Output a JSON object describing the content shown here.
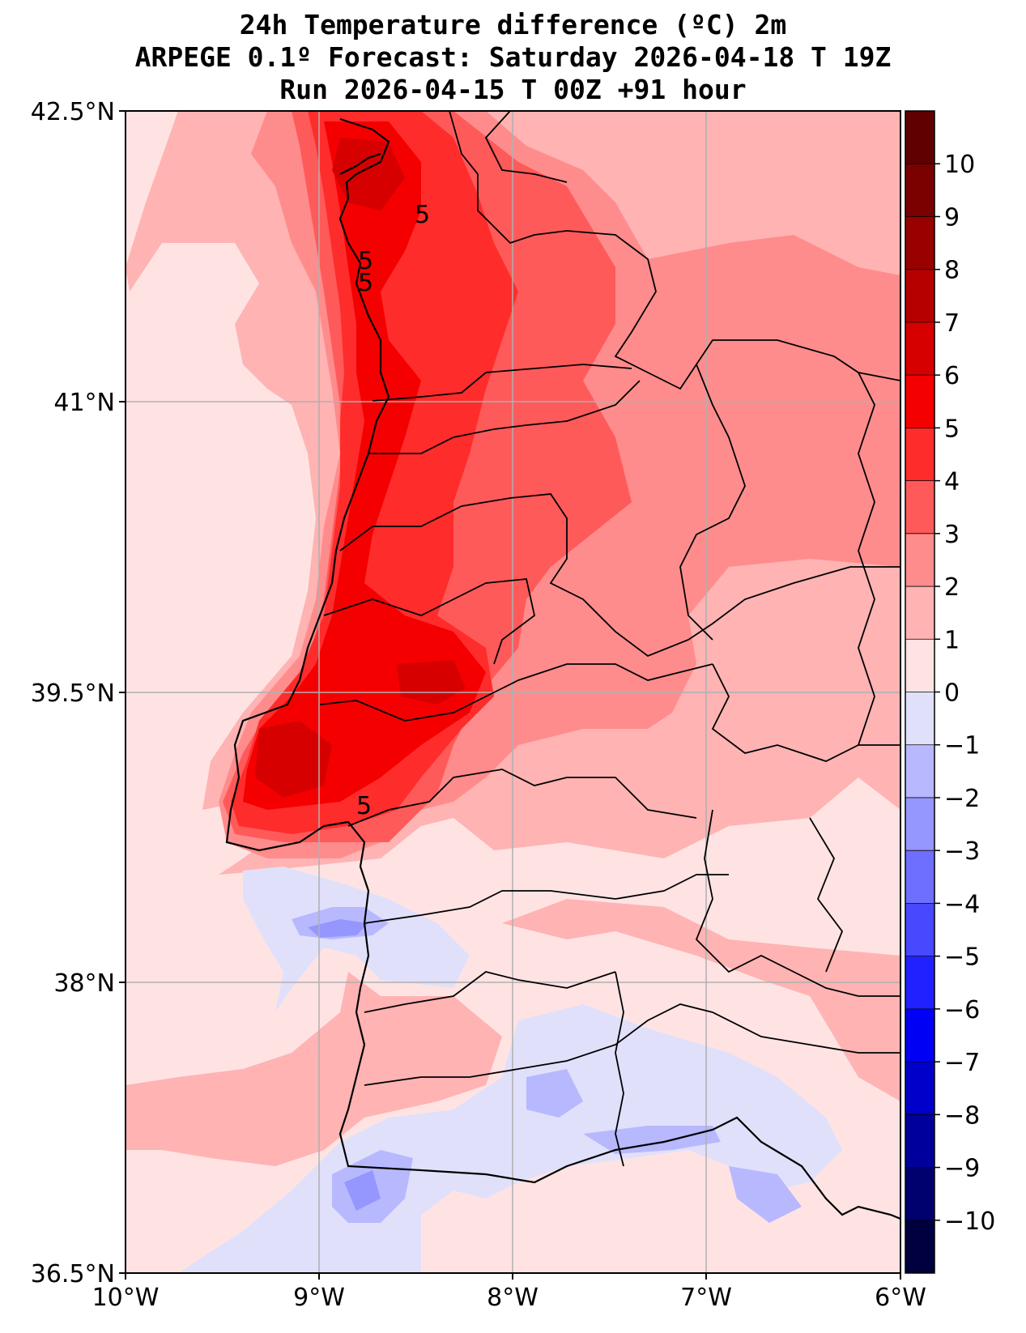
{
  "title": {
    "line1": "24h Temperature difference (ºC) 2m",
    "line2": "ARPEGE 0.1º Forecast: Saturday 2026-04-18 T 19Z",
    "line3": "Run 2026-04-15 T 00Z +91 hour"
  },
  "axes": {
    "lon_ticks": [
      {
        "value": -10,
        "label": "10°W"
      },
      {
        "value": -9,
        "label": "9°W"
      },
      {
        "value": -8,
        "label": "8°W"
      },
      {
        "value": -7,
        "label": "7°W"
      },
      {
        "value": -6,
        "label": "6°W"
      }
    ],
    "lat_ticks": [
      {
        "value": 42.5,
        "label": "42.5°N"
      },
      {
        "value": 41,
        "label": "41°N"
      },
      {
        "value": 39.5,
        "label": "39.5°N"
      },
      {
        "value": 38,
        "label": "38°N"
      },
      {
        "value": 36.5,
        "label": "36.5°N"
      }
    ],
    "lon_range": [
      -10,
      -6
    ],
    "lat_range": [
      36.5,
      42.5
    ],
    "grid": true
  },
  "colorbar": {
    "levels": [
      -11,
      -10,
      -9,
      -8,
      -7,
      -6,
      -5,
      -4,
      -3,
      -2,
      -1,
      0,
      1,
      2,
      3,
      4,
      5,
      6,
      7,
      8,
      9,
      10,
      11
    ],
    "colors": [
      "#00003f",
      "#00006e",
      "#00009c",
      "#0000ca",
      "#0000f5",
      "#2121ff",
      "#4848ff",
      "#6f6fff",
      "#9696ff",
      "#b8b8ff",
      "#e0e0fb",
      "#ffe3e3",
      "#ffb3b3",
      "#ff8c8c",
      "#ff5a5a",
      "#ff2c2c",
      "#f50000",
      "#d60000",
      "#b60000",
      "#990000",
      "#7b0000",
      "#600000"
    ],
    "labels": [
      {
        "value": 10,
        "label": "10"
      },
      {
        "value": 9,
        "label": "9"
      },
      {
        "value": 8,
        "label": "8"
      },
      {
        "value": 7,
        "label": "7"
      },
      {
        "value": 6,
        "label": "6"
      },
      {
        "value": 5,
        "label": "5"
      },
      {
        "value": 4,
        "label": "4"
      },
      {
        "value": 3,
        "label": "3"
      },
      {
        "value": 2,
        "label": "2"
      },
      {
        "value": 1,
        "label": "1"
      },
      {
        "value": 0,
        "label": "0"
      },
      {
        "value": -1,
        "label": "−1"
      },
      {
        "value": -2,
        "label": "−2"
      },
      {
        "value": -3,
        "label": "−3"
      },
      {
        "value": -4,
        "label": "−4"
      },
      {
        "value": -5,
        "label": "−5"
      },
      {
        "value": -6,
        "label": "−6"
      },
      {
        "value": -7,
        "label": "−7"
      },
      {
        "value": -8,
        "label": "−8"
      },
      {
        "value": -9,
        "label": "−9"
      },
      {
        "value": -10,
        "label": "−10"
      }
    ]
  },
  "contour_labels": [
    "5",
    "5",
    "5",
    "5"
  ],
  "colors": {
    "ocean_light_pink": "#ffe3e3",
    "pink": "#ffb3b3",
    "salmon": "#ff8c8c",
    "red": "#ff2c2c",
    "deep_red": "#d60000",
    "light_blue": "#e0e0fb",
    "blue": "#9696ff",
    "medium_blue": "#6f6fff"
  }
}
